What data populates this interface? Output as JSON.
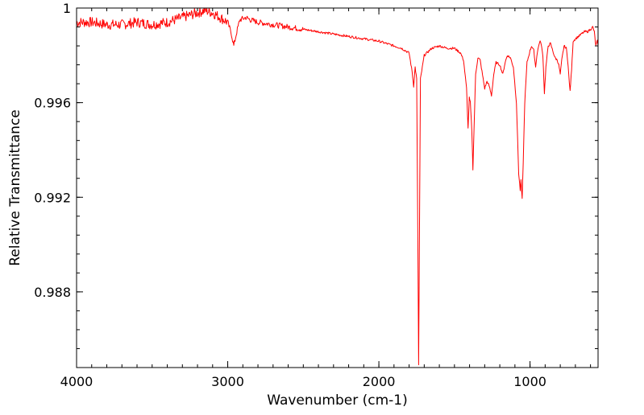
{
  "chart_data": {
    "type": "line",
    "title": "",
    "xlabel": "Wavenumber (cm-1)",
    "ylabel": "Relative Transmittance",
    "xlim": [
      4000,
      550
    ],
    "ylim": [
      0.9848,
      1.0
    ],
    "x_reversed": true,
    "grid": false,
    "x_ticks": [
      4000,
      3000,
      2000,
      1000
    ],
    "x_tick_labels": [
      "4000",
      "3000",
      "2000",
      "1000"
    ],
    "y_ticks": [
      1.0,
      0.996,
      0.992,
      0.988
    ],
    "y_tick_labels": [
      "1",
      "0.996",
      "0.992",
      "0.988"
    ],
    "x_minor_step": 100,
    "y_minor_step": 0.0008,
    "line_color": "#ff0000",
    "series": [
      {
        "name": "Spectrum",
        "points": [
          [
            4000,
            0.9994
          ],
          [
            3900,
            0.9994
          ],
          [
            3800,
            0.9993
          ],
          [
            3700,
            0.9993
          ],
          [
            3600,
            0.9994
          ],
          [
            3500,
            0.9993
          ],
          [
            3400,
            0.9994
          ],
          [
            3300,
            0.9996
          ],
          [
            3200,
            0.9998
          ],
          [
            3150,
            0.9999
          ],
          [
            3100,
            0.9998
          ],
          [
            3050,
            0.9996
          ],
          [
            3000,
            0.9994
          ],
          [
            2975,
            0.9989
          ],
          [
            2960,
            0.9984
          ],
          [
            2940,
            0.999
          ],
          [
            2920,
            0.9995
          ],
          [
            2880,
            0.9996
          ],
          [
            2850,
            0.9995
          ],
          [
            2800,
            0.9994
          ],
          [
            2700,
            0.9993
          ],
          [
            2600,
            0.9992
          ],
          [
            2500,
            0.9991
          ],
          [
            2400,
            0.999
          ],
          [
            2300,
            0.9989
          ],
          [
            2200,
            0.9988
          ],
          [
            2100,
            0.9987
          ],
          [
            2000,
            0.9986
          ],
          [
            1900,
            0.9984
          ],
          [
            1850,
            0.9983
          ],
          [
            1800,
            0.9981
          ],
          [
            1780,
            0.9973
          ],
          [
            1770,
            0.9967
          ],
          [
            1760,
            0.9975
          ],
          [
            1750,
            0.997
          ],
          [
            1742,
            0.99
          ],
          [
            1737,
            0.9849
          ],
          [
            1732,
            0.99
          ],
          [
            1725,
            0.997
          ],
          [
            1700,
            0.998
          ],
          [
            1650,
            0.9983
          ],
          [
            1600,
            0.9984
          ],
          [
            1550,
            0.9983
          ],
          [
            1500,
            0.9983
          ],
          [
            1460,
            0.9981
          ],
          [
            1440,
            0.9978
          ],
          [
            1420,
            0.9966
          ],
          [
            1410,
            0.9949
          ],
          [
            1402,
            0.9962
          ],
          [
            1395,
            0.996
          ],
          [
            1385,
            0.9948
          ],
          [
            1378,
            0.9932
          ],
          [
            1370,
            0.995
          ],
          [
            1360,
            0.9972
          ],
          [
            1345,
            0.9979
          ],
          [
            1330,
            0.9978
          ],
          [
            1310,
            0.997
          ],
          [
            1300,
            0.9966
          ],
          [
            1285,
            0.9969
          ],
          [
            1270,
            0.9967
          ],
          [
            1255,
            0.9963
          ],
          [
            1240,
            0.9972
          ],
          [
            1225,
            0.9977
          ],
          [
            1200,
            0.9976
          ],
          [
            1180,
            0.9972
          ],
          [
            1165,
            0.9977
          ],
          [
            1150,
            0.998
          ],
          [
            1130,
            0.9979
          ],
          [
            1110,
            0.9975
          ],
          [
            1090,
            0.996
          ],
          [
            1075,
            0.993
          ],
          [
            1065,
            0.9923
          ],
          [
            1060,
            0.9927
          ],
          [
            1052,
            0.9919
          ],
          [
            1045,
            0.9935
          ],
          [
            1035,
            0.996
          ],
          [
            1020,
            0.9977
          ],
          [
            1000,
            0.9982
          ],
          [
            990,
            0.9984
          ],
          [
            975,
            0.9982
          ],
          [
            963,
            0.9975
          ],
          [
            955,
            0.998
          ],
          [
            940,
            0.9985
          ],
          [
            930,
            0.9986
          ],
          [
            915,
            0.998
          ],
          [
            905,
            0.9964
          ],
          [
            895,
            0.9975
          ],
          [
            880,
            0.9984
          ],
          [
            865,
            0.9985
          ],
          [
            850,
            0.9982
          ],
          [
            835,
            0.9979
          ],
          [
            820,
            0.9978
          ],
          [
            810,
            0.9976
          ],
          [
            800,
            0.9972
          ],
          [
            790,
            0.9978
          ],
          [
            775,
            0.9984
          ],
          [
            760,
            0.9983
          ],
          [
            748,
            0.9976
          ],
          [
            740,
            0.9968
          ],
          [
            735,
            0.9965
          ],
          [
            725,
            0.9974
          ],
          [
            715,
            0.9986
          ],
          [
            700,
            0.9987
          ],
          [
            680,
            0.9988
          ],
          [
            660,
            0.9989
          ],
          [
            640,
            0.999
          ],
          [
            620,
            0.999
          ],
          [
            600,
            0.9991
          ],
          [
            585,
            0.9992
          ],
          [
            575,
            0.999
          ],
          [
            565,
            0.9984
          ],
          [
            555,
            0.9986
          ],
          [
            550,
            0.9984
          ]
        ]
      }
    ]
  }
}
